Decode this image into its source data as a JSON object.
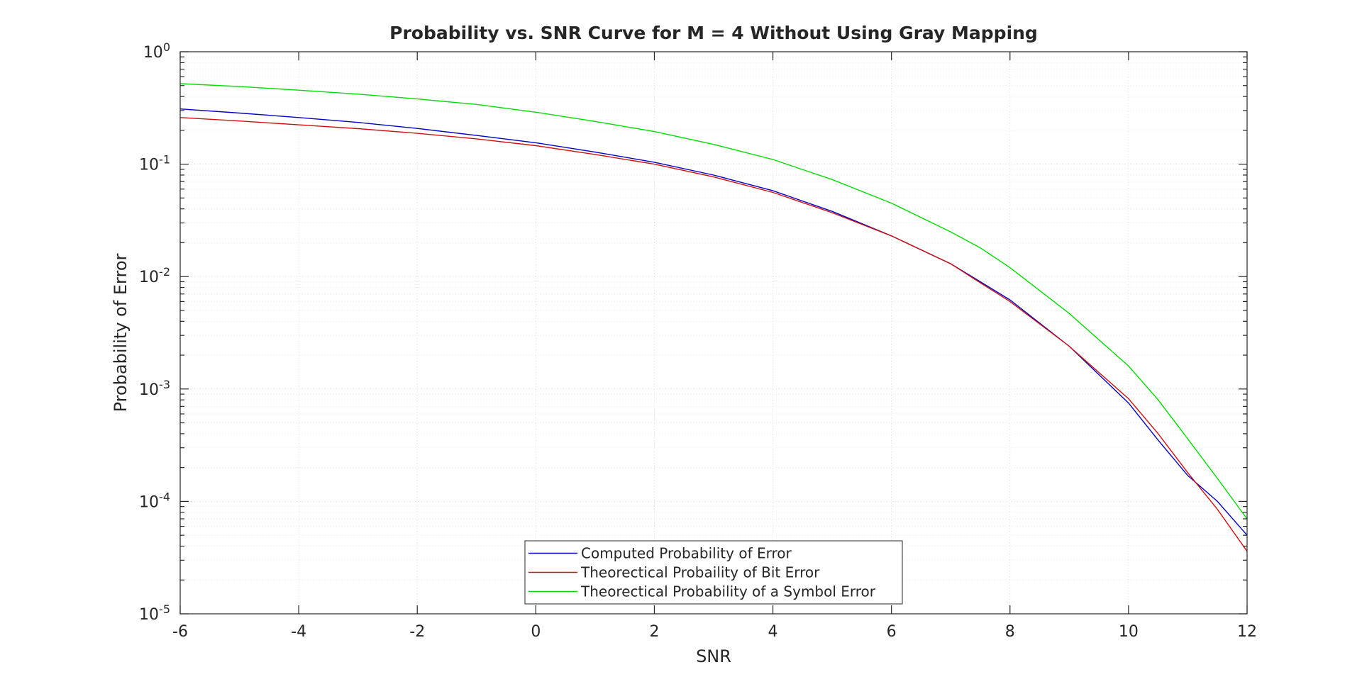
{
  "chart_data": {
    "type": "line",
    "title": "Probability vs. SNR Curve for M = 4 Without Using Gray Mapping",
    "xlabel": "SNR",
    "ylabel": "Probability of Error",
    "xlim": [
      -6,
      12
    ],
    "ylim": [
      1e-05,
      1
    ],
    "yscale": "log",
    "grid": true,
    "x_ticks": [
      -6,
      -4,
      -2,
      0,
      2,
      4,
      6,
      8,
      10,
      12
    ],
    "x_tick_labels": [
      "-6",
      "-4",
      "-2",
      "0",
      "2",
      "4",
      "6",
      "8",
      "10",
      "12"
    ],
    "y_ticks": [
      {
        "base": "10",
        "exp": "-5",
        "value": 1e-05
      },
      {
        "base": "10",
        "exp": "-4",
        "value": 0.0001
      },
      {
        "base": "10",
        "exp": "-3",
        "value": 0.001
      },
      {
        "base": "10",
        "exp": "-2",
        "value": 0.01
      },
      {
        "base": "10",
        "exp": "-1",
        "value": 0.1
      },
      {
        "base": "10",
        "exp": "0",
        "value": 1
      }
    ],
    "legend_position": "bottom-center",
    "x": [
      -6,
      -5,
      -4,
      -3,
      -2,
      -1,
      0,
      1,
      2,
      3,
      4,
      5,
      6,
      7,
      7.5,
      8,
      9,
      10,
      10.5,
      11,
      11.5,
      12
    ],
    "series": [
      {
        "name": "Computed Probability of Error",
        "color": "#0000c8",
        "values": [
          0.31,
          0.285,
          0.26,
          0.235,
          0.208,
          0.18,
          0.155,
          0.128,
          0.104,
          0.08,
          0.058,
          0.038,
          0.023,
          0.013,
          0.009,
          0.0062,
          0.0024,
          0.00075,
          0.00035,
          0.00017,
          0.0001,
          5e-05
        ]
      },
      {
        "name": "Theorectical Probaility of Bit Error",
        "color": "#d01010",
        "values": [
          0.26,
          0.242,
          0.224,
          0.207,
          0.188,
          0.168,
          0.146,
          0.122,
          0.1,
          0.077,
          0.056,
          0.037,
          0.023,
          0.013,
          0.0088,
          0.006,
          0.0024,
          0.00082,
          0.0004,
          0.00018,
          8.5e-05,
          3.6e-05
        ]
      },
      {
        "name": "Theorectical Probability of a Symbol Error",
        "color": "#00dd00",
        "values": [
          0.52,
          0.49,
          0.455,
          0.42,
          0.38,
          0.34,
          0.29,
          0.24,
          0.195,
          0.15,
          0.11,
          0.073,
          0.045,
          0.025,
          0.018,
          0.012,
          0.0047,
          0.0016,
          0.0008,
          0.00036,
          0.00016,
          7e-05
        ]
      }
    ]
  }
}
